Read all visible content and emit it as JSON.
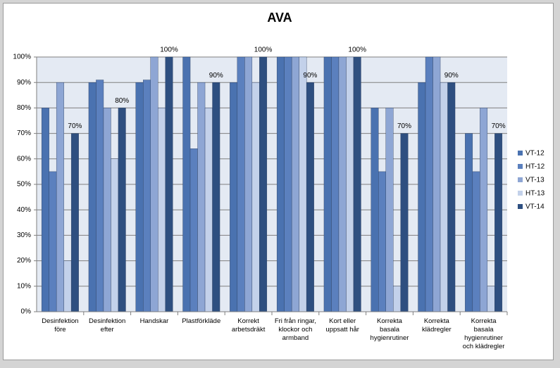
{
  "chart_data": {
    "type": "bar",
    "title": "AVA",
    "categories": [
      "Desinfektion före",
      "Desinfektion efter",
      "Handskar",
      "Plastförkläde",
      "Korrekt arbetsdräkt",
      "Fri från ringar, klockor och armband",
      "Kort eller uppsatt hår",
      "Korrekta basala hygienrutiner",
      "Korrekta klädregler",
      "Korrekta basala hygienrutiner och klädregler"
    ],
    "series": [
      {
        "name": "VT-12",
        "color": "#4a72b0",
        "values": [
          80,
          90,
          90,
          100,
          90,
          100,
          100,
          80,
          90,
          70
        ]
      },
      {
        "name": "HT-12",
        "color": "#5b80be",
        "values": [
          55,
          91,
          91,
          64,
          100,
          100,
          100,
          55,
          100,
          55
        ]
      },
      {
        "name": "VT-13",
        "color": "#8ea6d4",
        "values": [
          90,
          80,
          100,
          90,
          100,
          100,
          100,
          80,
          100,
          80
        ]
      },
      {
        "name": "HT-13",
        "color": "#c3d1ea",
        "values": [
          20,
          60,
          80,
          80,
          90,
          100,
          100,
          10,
          90,
          10
        ]
      },
      {
        "name": "VT-14",
        "color": "#2e4f80",
        "values": [
          70,
          80,
          100,
          90,
          100,
          90,
          100,
          70,
          90,
          70
        ],
        "value_labels": [
          "70%",
          "80%",
          "100%",
          "90%",
          "100%",
          "90%",
          "100%",
          "70%",
          "90%",
          "70%"
        ]
      }
    ],
    "ylim": [
      0,
      100
    ],
    "yticks": [
      {
        "value": 0,
        "label": "0%"
      },
      {
        "value": 10,
        "label": "10%"
      },
      {
        "value": 20,
        "label": "20%"
      },
      {
        "value": 30,
        "label": "30%"
      },
      {
        "value": 40,
        "label": "40%"
      },
      {
        "value": 50,
        "label": "50%"
      },
      {
        "value": 60,
        "label": "60%"
      },
      {
        "value": 70,
        "label": "70%"
      },
      {
        "value": 80,
        "label": "80%"
      },
      {
        "value": 90,
        "label": "90%"
      },
      {
        "value": 100,
        "label": "100%"
      }
    ],
    "grid": true,
    "legend": "right"
  }
}
